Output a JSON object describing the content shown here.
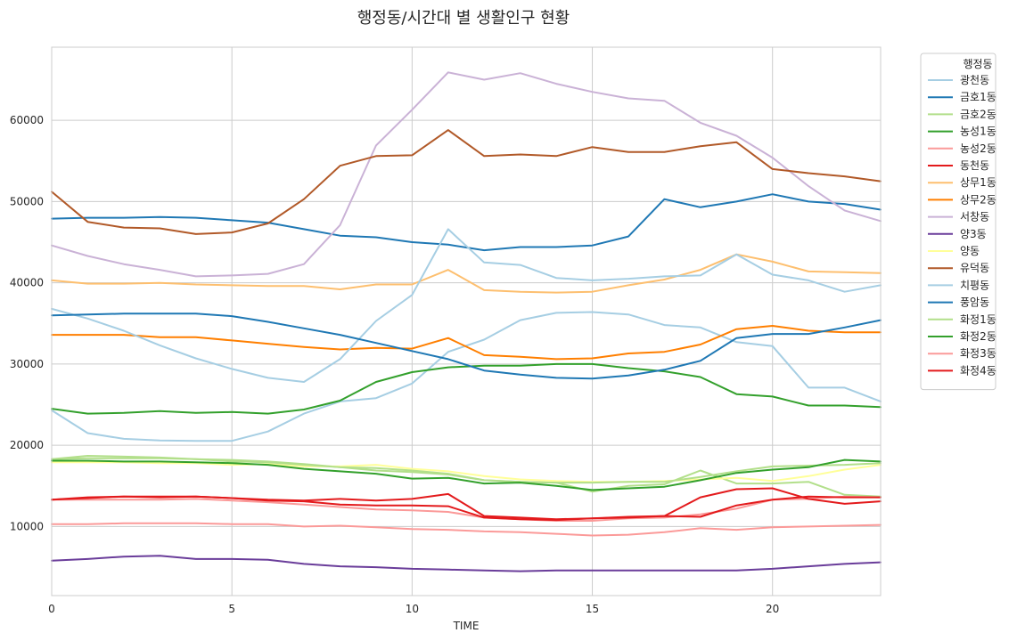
{
  "chart_data": {
    "type": "line",
    "title": "행정동/시간대 별 생활인구 현황",
    "xlabel": "TIME",
    "ylabel": "",
    "xlim": [
      0,
      23
    ],
    "ylim": [
      1500,
      69000
    ],
    "x_ticks": [
      0,
      5,
      10,
      15,
      20
    ],
    "y_ticks": [
      10000,
      20000,
      30000,
      40000,
      50000,
      60000
    ],
    "grid": true,
    "legend_title": "행정동",
    "legend_position": "outside-top-right",
    "x": [
      0,
      1,
      2,
      3,
      4,
      5,
      6,
      7,
      8,
      9,
      10,
      11,
      12,
      13,
      14,
      15,
      16,
      17,
      18,
      19,
      20,
      21,
      22,
      23
    ],
    "series": [
      {
        "name": "광천동",
        "color": "#a6cee3",
        "values": [
          24300,
          21500,
          20800,
          20600,
          20550,
          20550,
          21700,
          23900,
          25400,
          25800,
          27600,
          31500,
          33000,
          35400,
          36300,
          36400,
          36100,
          34800,
          34500,
          32700,
          32200,
          27100,
          27100,
          25400
        ]
      },
      {
        "name": "금호1동",
        "color": "#1f78b4",
        "values": [
          47900,
          48000,
          48000,
          48100,
          48000,
          47700,
          47400,
          46600,
          45800,
          45600,
          45000,
          44700,
          44000,
          44400,
          44400,
          44600,
          45700,
          50300,
          49300,
          50000,
          50900,
          50000,
          49700,
          49000
        ]
      },
      {
        "name": "금호2동",
        "color": "#b2df8a",
        "values": [
          18300,
          18400,
          18400,
          18400,
          18300,
          18200,
          18000,
          17700,
          17300,
          16900,
          16700,
          16400,
          15700,
          15500,
          15400,
          14300,
          15000,
          15200,
          16900,
          15300,
          15300,
          15500,
          13900,
          13700
        ]
      },
      {
        "name": "농성1동",
        "color": "#33a02c",
        "values": [
          24500,
          23900,
          24000,
          24200,
          24000,
          24100,
          23900,
          24400,
          25500,
          27800,
          29000,
          29600,
          29800,
          29800,
          30000,
          30000,
          29500,
          29100,
          28400,
          26300,
          26000,
          24900,
          24900,
          24700
        ]
      },
      {
        "name": "농성2동",
        "color": "#fb9a99",
        "values": [
          13300,
          13300,
          13300,
          13300,
          13400,
          13200,
          13000,
          12700,
          12400,
          12100,
          12000,
          11800,
          11100,
          10900,
          10700,
          10700,
          11000,
          11100,
          11500,
          12200,
          13300,
          13400,
          13700,
          13600
        ]
      },
      {
        "name": "동천동",
        "color": "#e31a1c",
        "values": [
          13300,
          13600,
          13700,
          13600,
          13700,
          13500,
          13300,
          13200,
          13400,
          13200,
          13400,
          14000,
          11300,
          11100,
          10900,
          11000,
          11200,
          11300,
          11200,
          12600,
          13300,
          13700,
          13600,
          13600
        ]
      },
      {
        "name": "상무1동",
        "color": "#fdbf6f",
        "values": [
          40300,
          39900,
          39900,
          40000,
          39800,
          39700,
          39600,
          39600,
          39200,
          39800,
          39800,
          41600,
          39100,
          38900,
          38800,
          38900,
          39700,
          40400,
          41600,
          43500,
          42600,
          41400,
          41300,
          41200
        ]
      },
      {
        "name": "상무2동",
        "color": "#ff7f00",
        "values": [
          33600,
          33600,
          33600,
          33300,
          33300,
          32900,
          32500,
          32100,
          31800,
          32000,
          31900,
          33200,
          31100,
          30900,
          30600,
          30700,
          31300,
          31500,
          32400,
          34300,
          34700,
          34100,
          33900,
          33900
        ]
      },
      {
        "name": "서창동",
        "color": "#cab2d6",
        "values": [
          44600,
          43300,
          42300,
          41600,
          40800,
          40900,
          41100,
          42300,
          47100,
          56900,
          61300,
          65900,
          65000,
          65800,
          64500,
          63500,
          62700,
          62400,
          59700,
          58100,
          55400,
          51900,
          48900,
          47600
        ]
      },
      {
        "name": "양3동",
        "color": "#6a3d9a",
        "values": [
          5800,
          6000,
          6300,
          6400,
          6000,
          6000,
          5900,
          5400,
          5100,
          5000,
          4800,
          4700,
          4600,
          4500,
          4600,
          4600,
          4600,
          4600,
          4600,
          4600,
          4800,
          5100,
          5400,
          5600
        ]
      },
      {
        "name": "양동",
        "color": "#ffff99",
        "values": [
          17900,
          17900,
          17900,
          17800,
          17800,
          17600,
          17700,
          17400,
          17400,
          17600,
          17100,
          16800,
          16200,
          15800,
          15600,
          15500,
          15500,
          15600,
          15800,
          16000,
          15600,
          16200,
          17000,
          17600
        ]
      },
      {
        "name": "유덕동",
        "color": "#b15928",
        "values": [
          51200,
          47500,
          46800,
          46700,
          46000,
          46200,
          47300,
          50300,
          54400,
          55600,
          55700,
          58800,
          55600,
          55800,
          55600,
          56700,
          56100,
          56100,
          56800,
          57300,
          54000,
          53500,
          53100,
          52500
        ]
      },
      {
        "name": "치평동",
        "color": "#a6cee3",
        "values": [
          36800,
          35600,
          34100,
          32300,
          30700,
          29400,
          28300,
          27800,
          30600,
          35300,
          38500,
          46600,
          42500,
          42200,
          40600,
          40300,
          40500,
          40800,
          40900,
          43500,
          41000,
          40300,
          38900,
          39700
        ]
      },
      {
        "name": "풍암동",
        "color": "#1f78b4",
        "values": [
          36000,
          36100,
          36200,
          36200,
          36200,
          35900,
          35200,
          34400,
          33600,
          32600,
          31600,
          30600,
          29200,
          28700,
          28300,
          28200,
          28600,
          29300,
          30400,
          33200,
          33700,
          33700,
          34500,
          35400
        ]
      },
      {
        "name": "화정1동",
        "color": "#b2df8a",
        "values": [
          18300,
          18700,
          18600,
          18500,
          18300,
          18000,
          17900,
          17600,
          17300,
          17200,
          16900,
          16500,
          15700,
          15500,
          15400,
          15400,
          15500,
          15500,
          16100,
          16800,
          17400,
          17500,
          17600,
          17800
        ]
      },
      {
        "name": "화정2동",
        "color": "#33a02c",
        "values": [
          18100,
          18100,
          18000,
          18000,
          17900,
          17800,
          17600,
          17100,
          16800,
          16500,
          15900,
          16000,
          15300,
          15400,
          15000,
          14500,
          14700,
          14900,
          15700,
          16600,
          17000,
          17300,
          18200,
          18000
        ]
      },
      {
        "name": "화정3동",
        "color": "#fb9a99",
        "values": [
          10300,
          10300,
          10400,
          10400,
          10400,
          10300,
          10300,
          10000,
          10100,
          9900,
          9700,
          9600,
          9400,
          9300,
          9100,
          8900,
          9000,
          9300,
          9800,
          9600,
          9900,
          10000,
          10100,
          10200
        ]
      },
      {
        "name": "화정4동",
        "color": "#e31a1c",
        "values": [
          13300,
          13500,
          13700,
          13700,
          13700,
          13500,
          13200,
          13100,
          12700,
          12600,
          12600,
          12500,
          11100,
          10900,
          10800,
          11000,
          11100,
          11300,
          13600,
          14600,
          14700,
          13400,
          12800,
          13100
        ]
      }
    ]
  }
}
